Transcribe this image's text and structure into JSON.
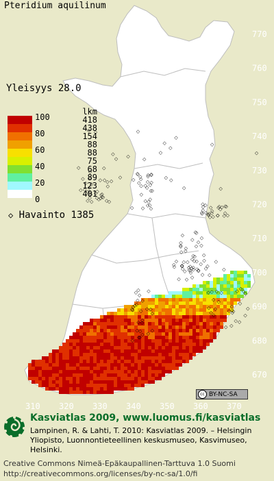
{
  "species": "Pteridium aquilinum",
  "yleisyys": "Yleisyys  28.0",
  "legend": {
    "count_header": "lkm",
    "classes": [
      {
        "label": "100",
        "count": "418",
        "color": "#c00000"
      },
      {
        "label": "",
        "count": "438",
        "color": "#e03000"
      },
      {
        "label": "80",
        "count": "154",
        "color": "#f07000"
      },
      {
        "label": "",
        "count": "88",
        "color": "#f0a000"
      },
      {
        "label": "60",
        "count": "88",
        "color": "#f8e000"
      },
      {
        "label": "",
        "count": "75",
        "color": "#d8f000"
      },
      {
        "label": "40",
        "count": "68",
        "color": "#80e030"
      },
      {
        "label": "",
        "count": "89",
        "color": "#60f0a0"
      },
      {
        "label": "20",
        "count": "123",
        "color": "#a0f8ff"
      },
      {
        "label": "",
        "count": "401",
        "color": "#ffffff"
      },
      {
        "label": "0",
        "count": "",
        "color": ""
      }
    ]
  },
  "observation": {
    "symbol": "◇",
    "label": "Havainto 1385"
  },
  "latitude_labels": [
    "770",
    "760",
    "750",
    "740",
    "730",
    "720",
    "710",
    "700",
    "690",
    "680",
    "670"
  ],
  "longitude_labels": [
    "310",
    "320",
    "330",
    "340",
    "350",
    "360",
    "370"
  ],
  "cc_badge": "BY-NC-SA",
  "footer": {
    "title": "Kasviatlas 2009, www.luomus.fi/kasviatlas",
    "citation": "Lampinen, R. & Lahti, T. 2010: Kasviatlas 2009. – Helsingin Yliopisto, Luonnontieteellinen keskusmuseo, Kasvimuseo, Helsinki.",
    "license": "Creative Commons Nimeä-Epäkaupallinen-Tarttuva 1.0 Suomi http://creativecommons.org/licenses/by-nc-sa/1.0/fi"
  },
  "colors": {
    "background": "#e9e9c9",
    "land": "#ffffff",
    "footer_green": "#0a6e2a"
  }
}
